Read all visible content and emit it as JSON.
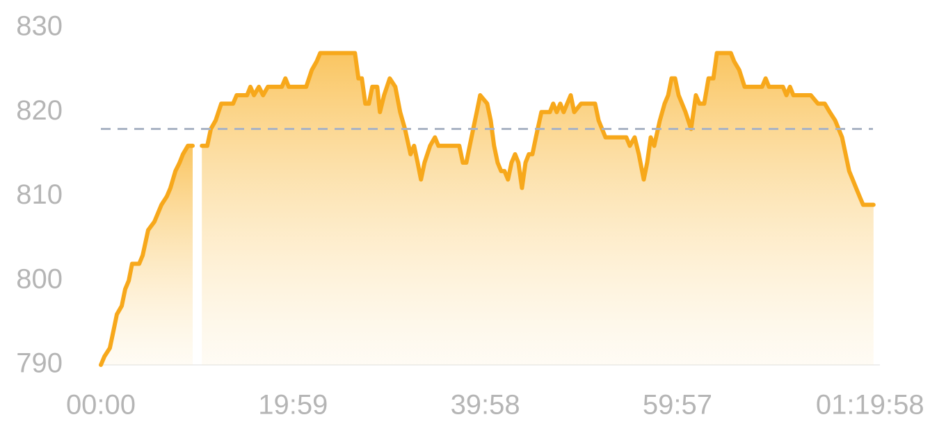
{
  "chart_data": {
    "type": "area",
    "x": [
      0,
      22,
      56,
      78,
      100,
      130,
      152,
      174,
      195,
      239,
      261,
      295,
      334,
      378,
      412,
      434,
      465,
      491,
      512,
      543,
      573,
      599,
      630,
      664,
      686,
      716,
      751,
      825,
      847,
      912,
      933,
      955,
      986,
      1012,
      1042,
      1129,
      1151,
      1172,
      1281,
      1316,
      1346,
      1368,
      1585,
      1607,
      1628,
      1650,
      1672,
      1693,
      1724,
      1741,
      1767,
      1802,
      1837,
      1867,
      1897,
      1932,
      1954,
      1976,
      1997,
      2019,
      2054,
      2084,
      2106,
      2149,
      2236,
      2258,
      2280,
      2301,
      2323,
      2345,
      2366,
      2410,
      2432,
      2453,
      2475,
      2497,
      2518,
      2540,
      2562,
      2584,
      2605,
      2627,
      2649,
      2670,
      2692,
      2714,
      2748,
      2801,
      2822,
      2844,
      2866,
      2887,
      2909,
      2931,
      2953,
      2996,
      3083,
      3105,
      3148,
      3278,
      3300,
      3330,
      3356,
      3387,
      3408,
      3430,
      3452,
      3487,
      3517,
      3539,
      3560,
      3582,
      3604,
      3647,
      3682,
      3712,
      3734,
      3764,
      3791,
      3821,
      3843,
      3930,
      3951,
      3982,
      4016,
      4125,
      4147,
      4168,
      4255,
      4277,
      4299,
      4320,
      4364,
      4429,
      4473,
      4516,
      4547,
      4581,
      4624,
      4646,
      4668,
      4690,
      4711,
      4733,
      4755,
      4820
    ],
    "series": [
      {
        "color": "#f7a81b",
        "values": [
          790,
          791,
          792,
          794,
          796,
          797,
          799,
          800,
          802,
          802,
          803,
          806,
          807,
          809,
          810,
          811,
          813,
          814,
          815,
          816,
          816,
          null,
          816,
          816,
          818,
          819,
          821,
          821,
          822,
          822,
          823,
          822,
          823,
          822,
          823,
          823,
          824,
          823,
          823,
          825,
          826,
          827,
          827,
          824,
          824,
          821,
          821,
          823,
          823,
          820,
          822,
          824,
          823,
          820,
          818,
          815,
          816,
          814,
          812,
          814,
          816,
          817,
          816,
          816,
          816,
          814,
          814,
          816,
          818,
          820,
          822,
          821,
          819,
          816,
          814,
          813,
          813,
          812,
          814,
          815,
          814,
          811,
          814,
          815,
          815,
          817,
          820,
          820,
          821,
          820,
          821,
          820,
          821,
          822,
          820,
          821,
          821,
          819,
          817,
          817,
          816,
          817,
          815,
          812,
          814,
          817,
          816,
          819,
          821,
          822,
          824,
          824,
          822,
          820,
          818,
          822,
          821,
          821,
          824,
          824,
          827,
          827,
          826,
          825,
          823,
          823,
          824,
          823,
          823,
          822,
          823,
          822,
          822,
          822,
          821,
          821,
          820,
          819,
          817,
          815,
          813,
          812,
          811,
          810,
          809,
          809
        ]
      }
    ],
    "average": 818,
    "xlim": [
      0,
      4860
    ],
    "ylim": [
      790,
      830
    ],
    "yticks": [
      790,
      800,
      810,
      820,
      830
    ],
    "xticks": [
      {
        "value": 0,
        "label": "00:00"
      },
      {
        "value": 1199,
        "label": "19:59"
      },
      {
        "value": 2398,
        "label": "39:58"
      },
      {
        "value": 3597,
        "label": "59:57"
      },
      {
        "value": 4798,
        "label": "01:19:58"
      }
    ]
  }
}
